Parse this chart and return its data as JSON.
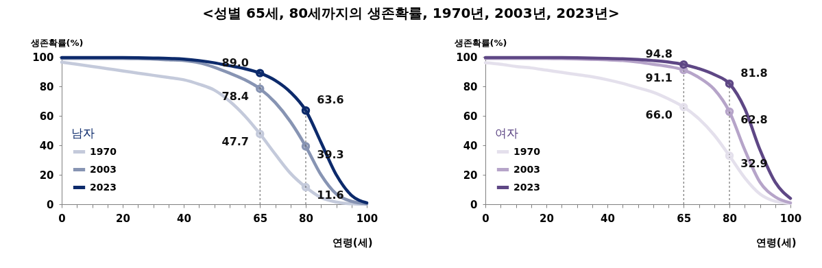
{
  "chart_data": [
    {
      "type": "line",
      "title": "<성별 65세, 80세까지의 생존확률, 1970년, 2003년, 2023년>",
      "xlabel": "연령(세)",
      "ylabel": "생존확률(%)",
      "legend_title": "남자",
      "legend": "bottom left",
      "line_style": "solid",
      "x": [
        0,
        5,
        10,
        15,
        20,
        25,
        30,
        35,
        40,
        45,
        50,
        55,
        60,
        65,
        70,
        75,
        80,
        85,
        90,
        95,
        100
      ],
      "xlim": [
        0,
        100
      ],
      "xticks": [
        0,
        {
          "value": 5,
          "label": null
        },
        {
          "value": 10,
          "label": null
        },
        {
          "value": 15,
          "label": null
        },
        20,
        {
          "value": 25,
          "label": null
        },
        {
          "value": 30,
          "label": null
        },
        {
          "value": 35,
          "label": null
        },
        40,
        {
          "value": 45,
          "label": null
        },
        {
          "value": 50,
          "label": null
        },
        {
          "value": 55,
          "label": null
        },
        {
          "value": 60,
          "label": null
        },
        65,
        {
          "value": 70,
          "label": null
        },
        {
          "value": 75,
          "label": null
        },
        80,
        {
          "value": 85,
          "label": null
        },
        {
          "value": 90,
          "label": null
        },
        {
          "value": 95,
          "label": null
        },
        100
      ],
      "ylim": [
        0,
        100
      ],
      "yticks": [
        0,
        20,
        40,
        60,
        80,
        100
      ],
      "ref_lines": [
        {
          "axis": "x",
          "value": 65,
          "line_style": "dashed",
          "color": "#595959"
        },
        {
          "axis": "x",
          "value": 80,
          "line_style": "dashed",
          "color": "#595959"
        }
      ],
      "series": [
        {
          "name": "1970",
          "color": "#c4cadb",
          "values": [
            96.4,
            95,
            93.5,
            92,
            90.5,
            89,
            87.5,
            86,
            84.5,
            81.5,
            77.5,
            70,
            60,
            47.7,
            34,
            21,
            11.6,
            4.5,
            1.5,
            0.3,
            0
          ],
          "value_labels": [
            null,
            null,
            null,
            null,
            null,
            null,
            null,
            null,
            null,
            null,
            null,
            null,
            null,
            "47.7",
            null,
            null,
            "11.6",
            null,
            null,
            null,
            null
          ]
        },
        {
          "name": "2003",
          "color": "#8794b3",
          "values": [
            99,
            99,
            99,
            99,
            99,
            98.8,
            98.5,
            98,
            97.5,
            96,
            93,
            89,
            84.5,
            78.4,
            69,
            56,
            39.3,
            20,
            7,
            2,
            0.3
          ],
          "value_labels": [
            null,
            null,
            null,
            null,
            null,
            null,
            null,
            null,
            null,
            null,
            null,
            null,
            null,
            "78.4",
            null,
            null,
            "39.3",
            null,
            null,
            null,
            null
          ]
        },
        {
          "name": "2023",
          "color": "#0c2a6b",
          "values": [
            99.5,
            99.5,
            99.5,
            99.5,
            99.5,
            99.4,
            99.2,
            99,
            98.5,
            97.5,
            96,
            94,
            92,
            89.0,
            84,
            76,
            63.6,
            42,
            20,
            6,
            1
          ],
          "value_labels": [
            null,
            null,
            null,
            null,
            null,
            null,
            null,
            null,
            null,
            null,
            null,
            null,
            null,
            "89.0",
            null,
            null,
            "63.6",
            null,
            null,
            null,
            null
          ]
        }
      ]
    },
    {
      "type": "line",
      "xlabel": "연령(세)",
      "ylabel": "생존확률(%)",
      "legend_title": "여자",
      "legend": "bottom left",
      "line_style": "solid",
      "x": [
        0,
        5,
        10,
        15,
        20,
        25,
        30,
        35,
        40,
        45,
        50,
        55,
        60,
        65,
        70,
        75,
        80,
        85,
        90,
        95,
        100
      ],
      "xlim": [
        0,
        100
      ],
      "xticks": [
        0,
        {
          "value": 5,
          "label": null
        },
        {
          "value": 10,
          "label": null
        },
        {
          "value": 15,
          "label": null
        },
        20,
        {
          "value": 25,
          "label": null
        },
        {
          "value": 30,
          "label": null
        },
        {
          "value": 35,
          "label": null
        },
        40,
        {
          "value": 45,
          "label": null
        },
        {
          "value": 50,
          "label": null
        },
        {
          "value": 55,
          "label": null
        },
        {
          "value": 60,
          "label": null
        },
        65,
        {
          "value": 70,
          "label": null
        },
        {
          "value": 75,
          "label": null
        },
        80,
        {
          "value": 85,
          "label": null
        },
        {
          "value": 90,
          "label": null
        },
        {
          "value": 95,
          "label": null
        },
        100
      ],
      "ylim": [
        0,
        100
      ],
      "yticks": [
        0,
        20,
        40,
        60,
        80,
        100
      ],
      "ref_lines": [
        {
          "axis": "x",
          "value": 65,
          "line_style": "dashed",
          "color": "#595959"
        },
        {
          "axis": "x",
          "value": 80,
          "line_style": "dashed",
          "color": "#595959"
        }
      ],
      "series": [
        {
          "name": "1970",
          "color": "#e4e0ec",
          "values": [
            96,
            95,
            93.5,
            92.5,
            91,
            89.5,
            88,
            86.5,
            84.5,
            82,
            79,
            76,
            71.5,
            66.0,
            58,
            47,
            32.9,
            18,
            7,
            2,
            0.5
          ],
          "value_labels": [
            null,
            null,
            null,
            null,
            null,
            null,
            null,
            null,
            null,
            null,
            null,
            null,
            null,
            "66.0",
            null,
            null,
            "32.9",
            null,
            null,
            null,
            null
          ]
        },
        {
          "name": "2003",
          "color": "#b6a4c9",
          "values": [
            99,
            99,
            99,
            99,
            99,
            98.8,
            98.6,
            98.3,
            98,
            97.5,
            96.5,
            95,
            93.5,
            91.1,
            86,
            78,
            62.8,
            37,
            15,
            5,
            1
          ],
          "value_labels": [
            null,
            null,
            null,
            null,
            null,
            null,
            null,
            null,
            null,
            null,
            null,
            null,
            null,
            "91.1",
            null,
            null,
            "62.8",
            null,
            null,
            null,
            null
          ]
        },
        {
          "name": "2023",
          "color": "#5e4785",
          "values": [
            99.5,
            99.5,
            99.5,
            99.5,
            99.5,
            99.5,
            99.4,
            99.2,
            99,
            98.7,
            98.2,
            97.5,
            96.5,
            94.8,
            92,
            88,
            81.8,
            65,
            37,
            15,
            4
          ],
          "value_labels": [
            null,
            null,
            null,
            null,
            null,
            null,
            null,
            null,
            null,
            null,
            null,
            null,
            null,
            "94.8",
            null,
            null,
            "81.8",
            null,
            null,
            null,
            null
          ]
        }
      ]
    }
  ]
}
